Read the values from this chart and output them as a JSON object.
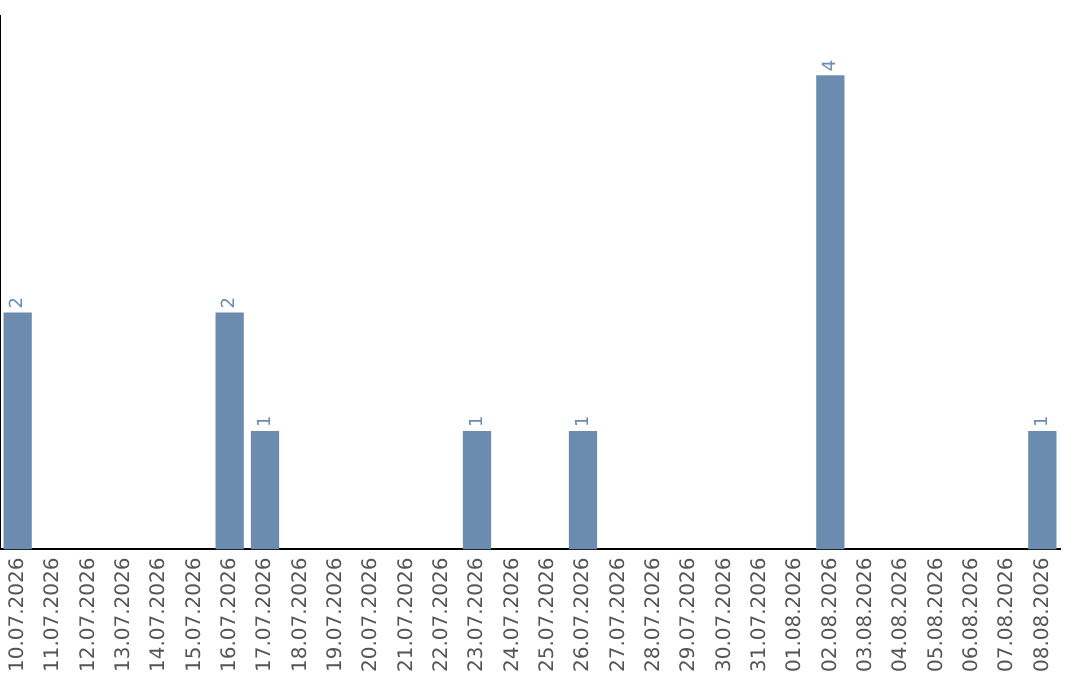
{
  "chart_data": {
    "type": "bar",
    "categories": [
      "10.07.2026",
      "11.07.2026",
      "12.07.2026",
      "13.07.2026",
      "14.07.2026",
      "15.07.2026",
      "16.07.2026",
      "17.07.2026",
      "18.07.2026",
      "19.07.2026",
      "20.07.2026",
      "21.07.2026",
      "22.07.2026",
      "23.07.2026",
      "24.07.2026",
      "25.07.2026",
      "26.07.2026",
      "27.07.2026",
      "28.07.2026",
      "29.07.2026",
      "30.07.2026",
      "31.07.2026",
      "01.08.2026",
      "02.08.2026",
      "03.08.2026",
      "04.08.2026",
      "05.08.2026",
      "06.08.2026",
      "07.08.2026",
      "08.08.2026"
    ],
    "values": [
      2,
      0,
      0,
      0,
      0,
      0,
      2,
      1,
      0,
      0,
      0,
      0,
      0,
      1,
      0,
      0,
      1,
      0,
      0,
      0,
      0,
      0,
      0,
      4,
      0,
      0,
      0,
      0,
      0,
      1
    ],
    "color": "#6b8cae",
    "value_labels": [
      "2",
      null,
      null,
      null,
      null,
      null,
      "2",
      "1",
      null,
      null,
      null,
      null,
      null,
      "1",
      null,
      null,
      "1",
      null,
      null,
      null,
      null,
      null,
      null,
      "4",
      null,
      null,
      null,
      null,
      null,
      "1"
    ],
    "grid": false,
    "legend": false,
    "tick_labels": "x"
  }
}
